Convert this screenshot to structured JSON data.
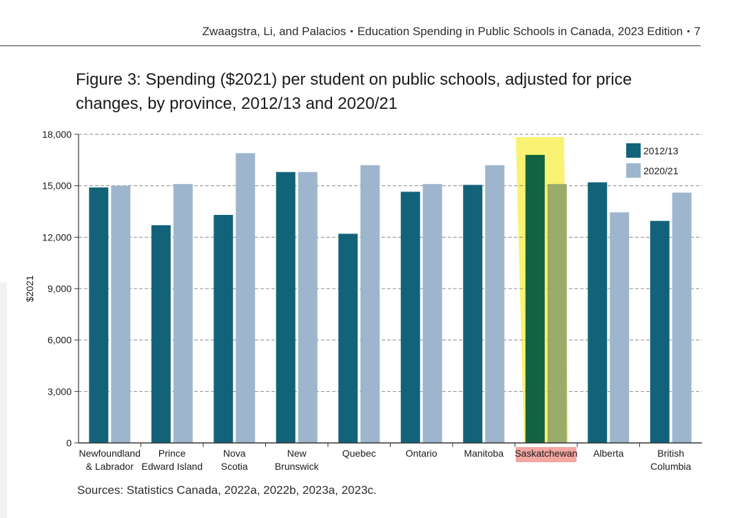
{
  "header": {
    "authors": "Zwaagstra, Li, and Palacios",
    "publication": "Education Spending in Public Schools in Canada, 2023 Edition",
    "page_number": "7"
  },
  "figure": {
    "title": "Figure 3: Spending ($2021) per student on public schools, adjusted for price changes, by province, 2012/13 and 2020/21",
    "sources": "Sources: Statistics Canada, 2022a, 2022b, 2023a, 2023c."
  },
  "chart_data": {
    "type": "bar",
    "ylabel": "$2021",
    "ylim": [
      0,
      18000
    ],
    "yticks": [
      0,
      3000,
      6000,
      9000,
      12000,
      15000,
      18000
    ],
    "ytick_labels": [
      "0",
      "3,000",
      "6,000",
      "9,000",
      "12,000",
      "15,000",
      "18,000"
    ],
    "grid": true,
    "legend_position": "top-right",
    "categories": [
      [
        "Newfoundland",
        "& Labrador"
      ],
      [
        "Prince",
        "Edward Island"
      ],
      [
        "Nova",
        "Scotia"
      ],
      [
        "New",
        "Brunswick"
      ],
      [
        "Quebec"
      ],
      [
        "Ontario"
      ],
      [
        "Manitoba"
      ],
      [
        "Saskatchewan"
      ],
      [
        "Alberta"
      ],
      [
        "British",
        "Columbia"
      ]
    ],
    "series": [
      {
        "name": "2012/13",
        "color": "#12637a",
        "values": [
          14900,
          12700,
          13300,
          15800,
          12200,
          14650,
          15050,
          16800,
          15200,
          12950
        ]
      },
      {
        "name": "2020/21",
        "color": "#9db6cd",
        "values": [
          15000,
          15100,
          16900,
          15800,
          16200,
          15100,
          16200,
          15100,
          13450,
          14600
        ]
      }
    ],
    "highlight": {
      "category_index": 7,
      "band_color": "#faf272",
      "label_color": "#f4a7a2",
      "series_colors": [
        "#136241",
        "#9aac6a"
      ]
    }
  }
}
